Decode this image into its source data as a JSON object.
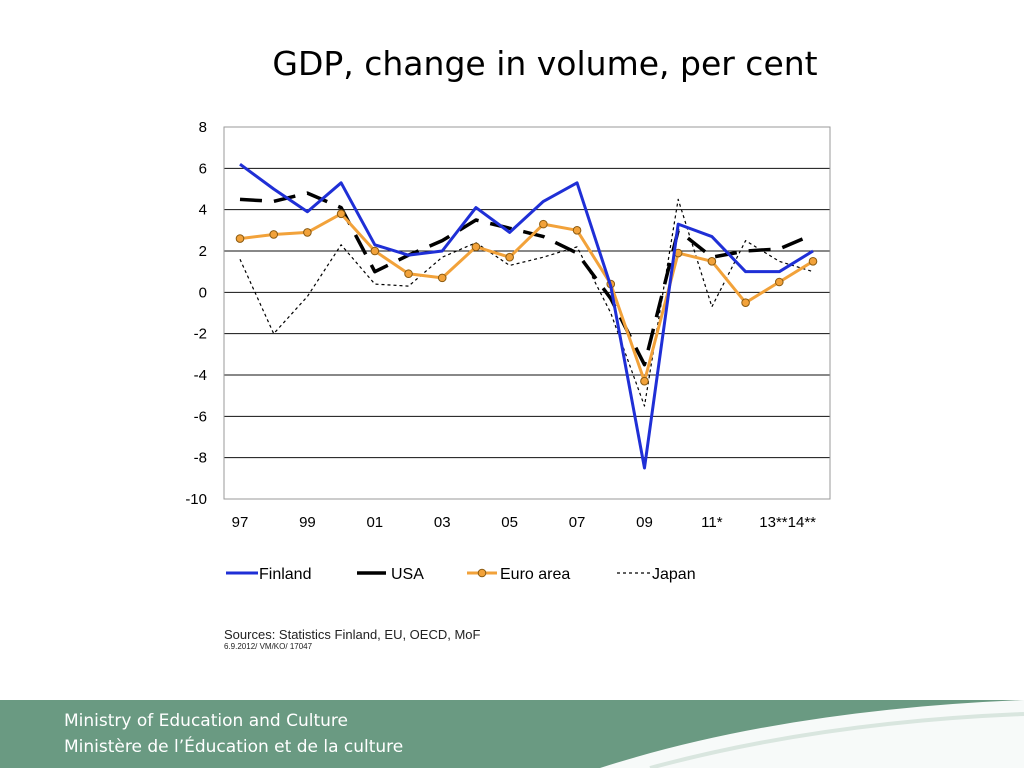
{
  "slide": {
    "title": "GDP, change in volume, per cent",
    "sources": "Sources: Statistics Finland, EU, OECD, MoF",
    "code": "6.9.2012/ VM/KO/    17047"
  },
  "footer": {
    "line1": "Ministry of Education and Culture",
    "line2": "Ministère de l’Éducation et de la culture",
    "bg_color": "#6a9a82"
  },
  "chart_data": {
    "type": "line",
    "title": "GDP, change in volume, per cent",
    "xlabel": "",
    "ylabel": "",
    "ylim": [
      -10,
      8
    ],
    "yticks": [
      8,
      6,
      4,
      2,
      0,
      -2,
      -4,
      -6,
      -8,
      -10
    ],
    "x": [
      "97",
      "98",
      "99",
      "00",
      "01",
      "02",
      "03",
      "04",
      "05",
      "06",
      "07",
      "08",
      "09",
      "10",
      "11*",
      "12*",
      "13**",
      "14**"
    ],
    "xtick_labels": [
      "97",
      "99",
      "01",
      "03",
      "05",
      "07",
      "09",
      "11*",
      "13**14**"
    ],
    "xtick_label_positions": [
      "97",
      "99",
      "01",
      "03",
      "05",
      "07",
      "09",
      "11*",
      "13**"
    ],
    "grid": true,
    "legend_position": "bottom",
    "series": [
      {
        "name": "Finland",
        "color": "#1f2fd6",
        "style": "solid",
        "values": [
          6.2,
          5.0,
          3.9,
          5.3,
          2.3,
          1.8,
          2.0,
          4.1,
          2.9,
          4.4,
          5.3,
          0.3,
          -8.5,
          3.3,
          2.7,
          1.0,
          1.0,
          2.0
        ]
      },
      {
        "name": "USA",
        "color": "#000000",
        "style": "dash",
        "values": [
          4.5,
          4.4,
          4.8,
          4.1,
          1.0,
          1.8,
          2.5,
          3.5,
          3.1,
          2.7,
          1.9,
          -0.3,
          -3.5,
          3.0,
          1.7,
          2.0,
          2.1,
          2.8
        ]
      },
      {
        "name": "Euro area",
        "color": "#f2a23a",
        "style": "marker",
        "values": [
          2.6,
          2.8,
          2.9,
          3.8,
          2.0,
          0.9,
          0.7,
          2.2,
          1.7,
          3.3,
          3.0,
          0.4,
          -4.3,
          1.9,
          1.5,
          -0.5,
          0.5,
          1.5
        ]
      },
      {
        "name": "Japan",
        "color": "#000000",
        "style": "dotted",
        "values": [
          1.6,
          -2.0,
          -0.2,
          2.3,
          0.4,
          0.3,
          1.7,
          2.4,
          1.3,
          1.7,
          2.2,
          -1.0,
          -5.5,
          4.5,
          -0.7,
          2.5,
          1.5,
          1.0
        ]
      }
    ]
  }
}
